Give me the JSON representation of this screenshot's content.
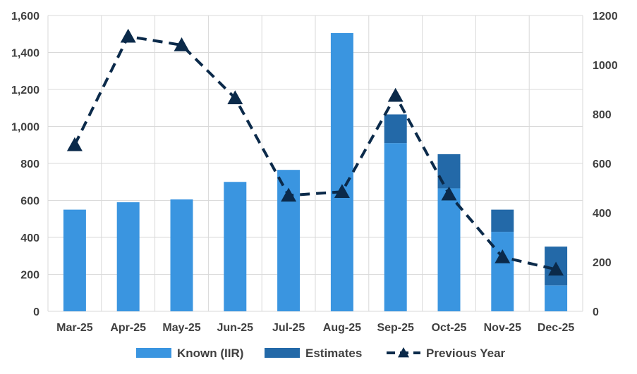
{
  "chart_data": {
    "type": "bar",
    "categories": [
      "Mar-25",
      "Apr-25",
      "May-25",
      "Jun-25",
      "Jul-25",
      "Aug-25",
      "Sep-25",
      "Oct-25",
      "Nov-25",
      "Dec-25"
    ],
    "series": [
      {
        "name": "Known (IIR)",
        "type": "bar",
        "stack": "total",
        "axis": "left",
        "color": "#3a95e0",
        "values": [
          550,
          590,
          605,
          700,
          765,
          1505,
          910,
          665,
          430,
          140
        ]
      },
      {
        "name": "Estimates",
        "type": "bar",
        "stack": "total",
        "axis": "left",
        "color": "#2369a8",
        "values": [
          0,
          0,
          0,
          0,
          0,
          0,
          155,
          185,
          120,
          210
        ]
      },
      {
        "name": "Previous Year",
        "type": "line",
        "axis": "right",
        "color": "#0b2a4a",
        "line_style": "dashed",
        "marker": "triangle",
        "values": [
          675,
          1115,
          1080,
          865,
          470,
          485,
          875,
          475,
          220,
          170
        ]
      }
    ],
    "y_left": {
      "min": 0,
      "max": 1600,
      "step": 200,
      "tick_labels": [
        "0",
        "200",
        "400",
        "600",
        "800",
        "1,000",
        "1,200",
        "1,400",
        "1,600"
      ]
    },
    "y_right": {
      "min": 0,
      "max": 1200,
      "step": 200,
      "tick_labels": [
        "0",
        "200",
        "400",
        "600",
        "800",
        "1000",
        "1200"
      ]
    },
    "grid": true,
    "legend_position": "bottom",
    "title": "",
    "xlabel": "",
    "ylabel": ""
  }
}
